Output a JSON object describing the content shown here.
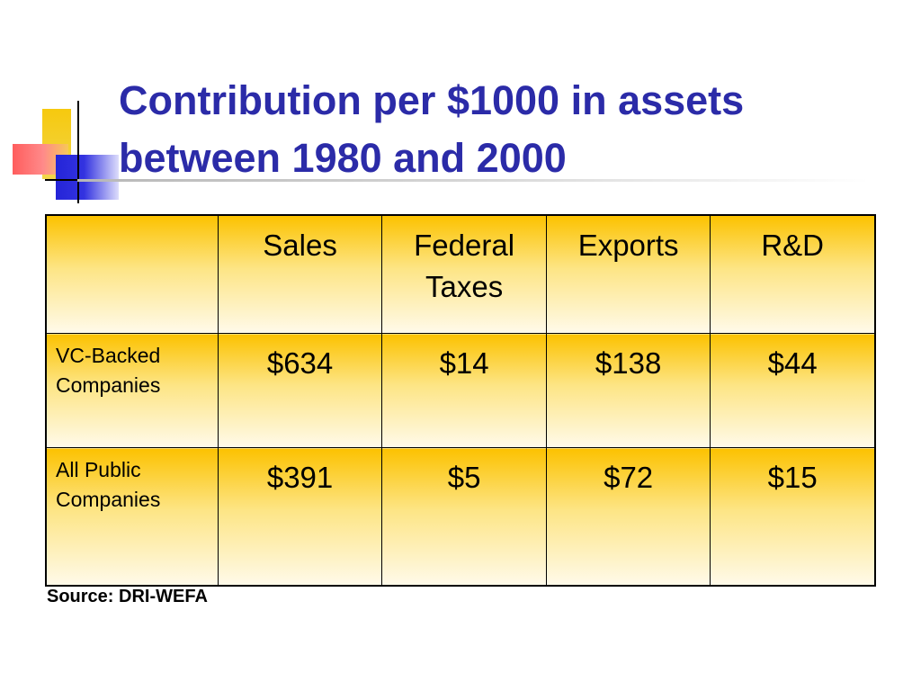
{
  "title": {
    "line1": "Contribution per $1000 in assets",
    "line2": "between 1980 and 2000"
  },
  "table": {
    "headers": [
      "",
      "Sales",
      "Federal Taxes",
      "Exports",
      "R&D"
    ],
    "header_lines": {
      "sales": "Sales",
      "federal_1": "Federal",
      "federal_2": "Taxes",
      "exports": "Exports",
      "rd": "R&D"
    },
    "rows": [
      {
        "label_1": "VC-Backed",
        "label_2": "Companies",
        "sales": "$634",
        "federal_taxes": "$14",
        "exports": "$138",
        "rd": "$44"
      },
      {
        "label_1": "All Public",
        "label_2": "Companies",
        "sales": "$391",
        "federal_taxes": "$5",
        "exports": "$72",
        "rd": "$15"
      }
    ]
  },
  "source": "Source: DRI-WEFA",
  "colors": {
    "title": "#2b2ba8",
    "cell_gradient_top": "#fcc200",
    "cell_gradient_bottom": "#fffaea"
  }
}
